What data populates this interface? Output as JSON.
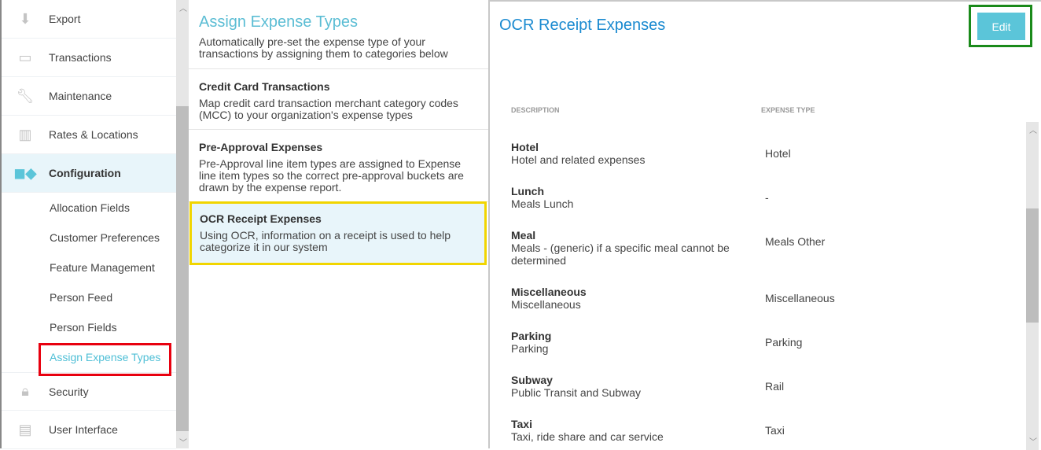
{
  "sidebar": {
    "items": [
      {
        "label": "Export",
        "icon": "download-icon"
      },
      {
        "label": "Transactions",
        "icon": "credit-card-icon"
      },
      {
        "label": "Maintenance",
        "icon": "wrench-icon"
      },
      {
        "label": "Rates & Locations",
        "icon": "building-icon"
      },
      {
        "label": "Configuration",
        "icon": "widgets-icon",
        "active": true
      }
    ],
    "subitems": [
      "Allocation Fields",
      "Customer Preferences",
      "Feature Management",
      "Person Feed",
      "Person Fields",
      "Assign Expense Types"
    ],
    "bottom_items": [
      {
        "label": "Security",
        "icon": "lock-icon"
      },
      {
        "label": "User Interface",
        "icon": "layout-icon"
      }
    ]
  },
  "middle": {
    "title": "Assign Expense Types",
    "intro": "Automatically pre-set the expense type of your transactions by assigning them to categories below",
    "cards": [
      {
        "title": "Credit Card Transactions",
        "desc": "Map credit card transaction merchant category codes (MCC) to your organization's expense types"
      },
      {
        "title": "Pre-Approval Expenses",
        "desc": "Pre-Approval line item types are assigned to Expense line item types so the correct pre-approval buckets are drawn by the expense report."
      },
      {
        "title": "OCR Receipt Expenses",
        "desc": "Using OCR, information on a receipt is used to help categorize it in our system"
      }
    ]
  },
  "detail": {
    "title": "OCR Receipt Expenses",
    "edit_label": "Edit",
    "col_description": "DESCRIPTION",
    "col_type": "EXPENSE TYPE",
    "rows": [
      {
        "name": "Hotel",
        "desc": "Hotel and related expenses",
        "type": "Hotel"
      },
      {
        "name": "Lunch",
        "desc": "Meals Lunch",
        "type": "-"
      },
      {
        "name": "Meal",
        "desc": "Meals - (generic) if a specific meal cannot be determined",
        "type": "Meals Other"
      },
      {
        "name": "Miscellaneous",
        "desc": "Miscellaneous",
        "type": "Miscellaneous"
      },
      {
        "name": "Parking",
        "desc": "Parking",
        "type": "Parking"
      },
      {
        "name": "Subway",
        "desc": "Public Transit and Subway",
        "type": "Rail"
      },
      {
        "name": "Taxi",
        "desc": "Taxi, ride share and car service",
        "type": "Taxi"
      }
    ]
  },
  "colors": {
    "accent": "#5bc5d9",
    "title_blue": "#1a8ad0",
    "highlight_red": "#e8000f",
    "highlight_yellow": "#f1d500",
    "highlight_green": "#1a8a1a"
  }
}
